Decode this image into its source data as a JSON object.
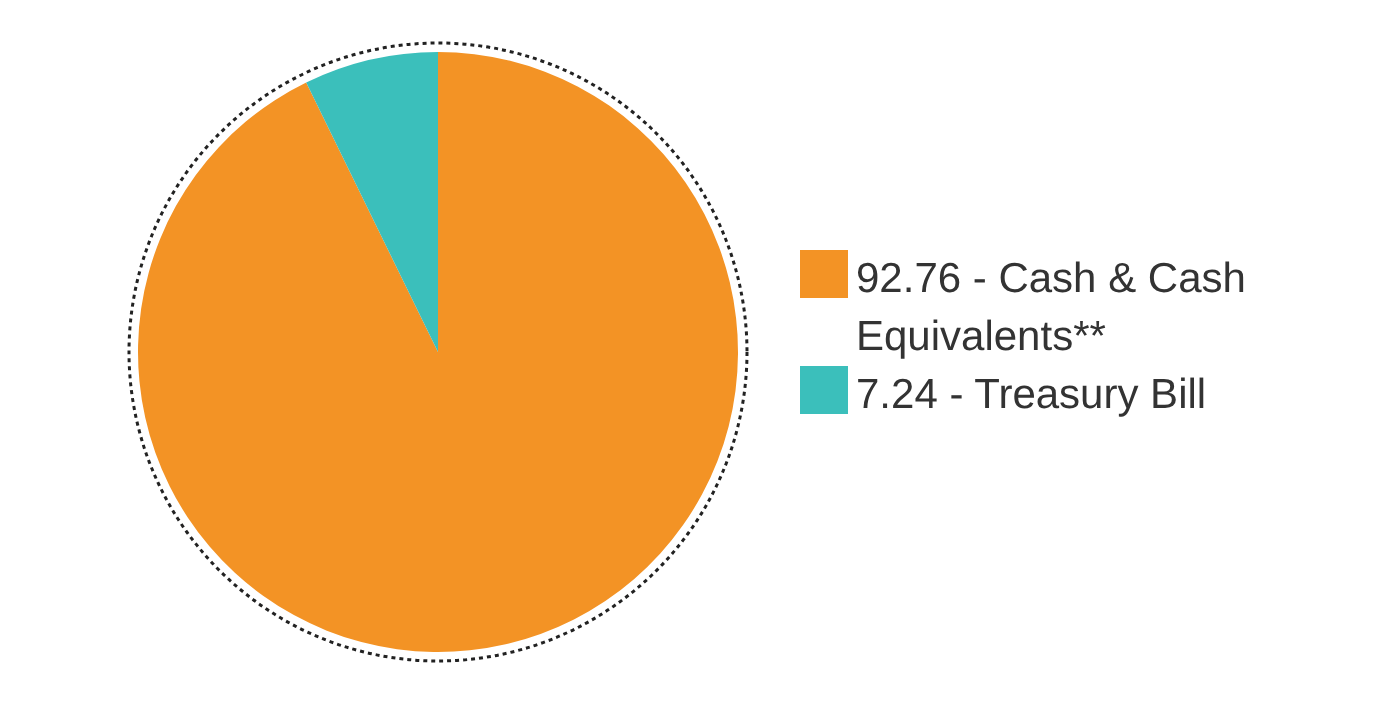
{
  "chart_data": {
    "type": "pie",
    "categories": [
      "92.76 - Cash & Cash Equivalents**",
      "7.24 - Treasury Bill"
    ],
    "values": [
      92.76,
      7.24
    ],
    "colors": [
      "#f39325",
      "#3bbfbb"
    ],
    "legend": "right"
  }
}
